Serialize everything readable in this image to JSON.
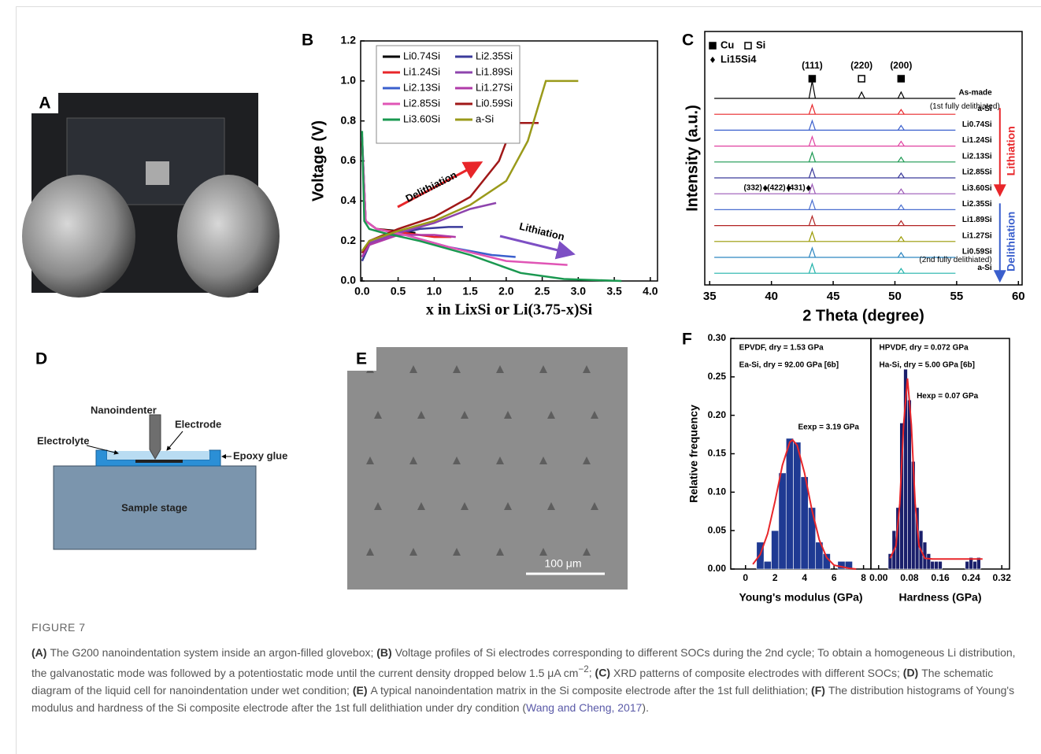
{
  "figure": {
    "label": "FIGURE 7",
    "panels": {
      "A": {
        "label": "A"
      },
      "D": {
        "label": "D",
        "texts": {
          "nanoindenter": "Nanoindenter",
          "electrode": "Electrode",
          "electrolyte": "Electrolyte",
          "epoxy": "Epoxy glue",
          "stage": "Sample stage"
        }
      },
      "E": {
        "label": "E",
        "scale_bar": "100 μm"
      }
    },
    "caption": [
      {
        "label": "(A)",
        "text": "The G200 nanoindentation system inside an argon-filled glovebox;"
      },
      {
        "label": "(B)",
        "text": "Voltage profiles of Si electrodes corresponding to different SOCs during the 2nd cycle; To obtain a homogeneous Li distribution, the galvanostatic mode was followed by a potentiostatic mode until the current density dropped below 1.5 μA cm",
        "sup": "−2",
        "tail": ";"
      },
      {
        "label": "(C)",
        "text": "XRD patterns of composite electrodes with different SOCs;"
      },
      {
        "label": "(D)",
        "text": "The schematic diagram of the liquid cell for nanoindentation under wet condition;"
      },
      {
        "label": "(E)",
        "text": "A typical nanoindentation matrix in the Si composite electrode after the 1st full delithiation;"
      },
      {
        "label": "(F)",
        "text": "The distribution histograms of Young's modulus and hardness of the Si composite electrode after the 1st full delithiation under dry condition (",
        "link": "Wang and Cheng, 2017",
        "tail": ")."
      }
    ]
  },
  "chart_data": [
    {
      "type": "line",
      "panel_label": "B",
      "xlabel": "x in LixSi or Li(3.75-x)Si",
      "ylabel": "Voltage (V)",
      "xlim": [
        -0.02,
        4.1
      ],
      "ylim": [
        0,
        1.2
      ],
      "xticks": [
        {
          "value": 0,
          "label": "0.0"
        },
        0.5,
        {
          "value": 1,
          "label": "1.0"
        },
        1.5,
        {
          "value": 2,
          "label": "2.0"
        },
        2.5,
        {
          "value": 3,
          "label": "3.0"
        },
        3.5,
        {
          "value": 4,
          "label": "4.0"
        }
      ],
      "yticks": [
        {
          "value": 0,
          "label": "0.0"
        },
        0.2,
        0.4,
        0.6,
        0.8,
        {
          "value": 1,
          "label": "1.0"
        },
        1.2
      ],
      "annotations": [
        "Delithiation",
        "Lithiation"
      ],
      "series": [
        {
          "name": "Li0.74Si",
          "color": "#000000",
          "x": [
            0,
            0.05,
            0.2,
            0.5,
            0.74
          ],
          "values": [
            0.7,
            0.3,
            0.26,
            0.25,
            0.24
          ]
        },
        {
          "name": "Li2.35Si",
          "color": "#3b3b9b",
          "x": [
            0,
            0.1,
            0.4,
            0.8,
            1.2,
            1.4
          ],
          "values": [
            0.1,
            0.18,
            0.23,
            0.26,
            0.27,
            0.27
          ]
        },
        {
          "name": "Li1.24Si",
          "color": "#e8262a",
          "x": [
            0,
            0.05,
            0.2,
            0.6,
            1.0,
            1.24
          ],
          "values": [
            0.7,
            0.3,
            0.26,
            0.24,
            0.22,
            0.22
          ]
        },
        {
          "name": "Li1.89Si",
          "color": "#8e44ad",
          "x": [
            0,
            0.1,
            0.5,
            1.0,
            1.5,
            1.86
          ],
          "values": [
            0.12,
            0.19,
            0.24,
            0.29,
            0.36,
            0.39
          ]
        },
        {
          "name": "Li2.13Si",
          "color": "#3a5fcd",
          "x": [
            0,
            0.05,
            0.2,
            0.6,
            1.2,
            1.8,
            2.13
          ],
          "values": [
            0.72,
            0.3,
            0.26,
            0.23,
            0.17,
            0.13,
            0.12
          ]
        },
        {
          "name": "Li1.27Si",
          "color": "#b03aa8",
          "x": [
            0,
            0.1,
            0.5,
            1.0,
            1.3
          ],
          "values": [
            0.12,
            0.18,
            0.23,
            0.23,
            0.22
          ]
        },
        {
          "name": "Li2.85Si",
          "color": "#e055b5",
          "x": [
            0,
            0.05,
            0.2,
            0.6,
            1.2,
            2.0,
            2.85
          ],
          "values": [
            0.72,
            0.3,
            0.26,
            0.23,
            0.17,
            0.1,
            0.08
          ]
        },
        {
          "name": "Li0.59Si",
          "color": "#a01818",
          "x": [
            0,
            0.1,
            0.5,
            1.0,
            1.5,
            1.9,
            2.1,
            2.45
          ],
          "values": [
            0.14,
            0.2,
            0.26,
            0.32,
            0.42,
            0.6,
            0.79,
            0.79
          ]
        },
        {
          "name": "Li3.60Si",
          "color": "#1a9850",
          "x": [
            0,
            0.03,
            0.1,
            0.3,
            0.8,
            1.5,
            2.2,
            2.8,
            3.6
          ],
          "values": [
            0.75,
            0.3,
            0.26,
            0.24,
            0.2,
            0.13,
            0.04,
            0.01,
            0
          ]
        },
        {
          "name": "a-Si",
          "color": "#9a9a1a",
          "x": [
            0,
            0.1,
            0.5,
            1.0,
            1.5,
            2.0,
            2.3,
            2.55,
            3.0
          ],
          "values": [
            0.15,
            0.2,
            0.25,
            0.3,
            0.38,
            0.5,
            0.7,
            1.0,
            1.0
          ]
        }
      ]
    },
    {
      "type": "xrd",
      "panel_label": "C",
      "xlabel": "2 Theta (degree)",
      "ylabel": "Intensity (a.u.)",
      "xlim": [
        34.6,
        60.3
      ],
      "xticks": [
        35,
        40,
        45,
        50,
        55,
        60
      ],
      "legend": [
        "Cu",
        "Si",
        "Li15Si4"
      ],
      "peak_labels": [
        {
          "text": "(111)",
          "x": 43.3
        },
        {
          "text": "(220)",
          "x": 47.3
        },
        {
          "text": "(200)",
          "x": 50.5
        }
      ],
      "li_peak_labels": [
        {
          "text": "(332)",
          "x": 39.5
        },
        {
          "text": "(422)",
          "x": 41.4
        },
        {
          "text": "(431)",
          "x": 43.0
        }
      ],
      "notes": [
        "(1st fully delithiated)",
        "(2nd fully delithiated)"
      ],
      "side_labels": [
        "Lithiation",
        "Delithiation"
      ],
      "series": [
        {
          "name": "As-made",
          "color": "#000000",
          "peaks": [
            43.3,
            47.3,
            50.5
          ]
        },
        {
          "name": "a-Si",
          "color": "#e8262a",
          "peaks": [
            43.3,
            50.5
          ]
        },
        {
          "name": "Li0.74Si",
          "color": "#3a5fcd",
          "peaks": [
            43.3,
            50.5
          ]
        },
        {
          "name": "Li1.24Si",
          "color": "#e040a0",
          "peaks": [
            43.3,
            50.5
          ]
        },
        {
          "name": "Li2.13Si",
          "color": "#1a9850",
          "peaks": [
            43.3,
            50.5
          ]
        },
        {
          "name": "Li2.85Si",
          "color": "#3b3b9b",
          "peaks": [
            43.3,
            50.5
          ]
        },
        {
          "name": "Li3.60Si",
          "color": "#9b59b6",
          "peaks": [
            43.3,
            50.5
          ]
        },
        {
          "name": "Li2.35Si",
          "color": "#4a6fd0",
          "peaks": [
            43.3,
            50.5
          ]
        },
        {
          "name": "Li1.89Si",
          "color": "#b22222",
          "peaks": [
            43.3,
            50.5
          ]
        },
        {
          "name": "Li1.27Si",
          "color": "#999900",
          "peaks": [
            43.3,
            50.5
          ]
        },
        {
          "name": "Li0.59Si",
          "color": "#2e86c1",
          "peaks": [
            43.3,
            50.5
          ]
        },
        {
          "name": "a-Si",
          "color": "#20b2aa",
          "peaks": [
            43.3,
            50.5
          ]
        }
      ]
    },
    {
      "type": "histogram",
      "panel_label": "F",
      "xlabel": "Young's modulus (GPa)",
      "ylabel": "Relative frequency",
      "xlim": [
        -1,
        8.5
      ],
      "xticks": [
        0,
        2,
        4,
        6,
        8
      ],
      "ylim": [
        0,
        0.3
      ],
      "yticks": [
        {
          "value": 0,
          "label": "0.00"
        },
        0.05,
        {
          "value": 0.1,
          "label": "0.10"
        },
        0.15,
        {
          "value": 0.2,
          "label": "0.20"
        },
        0.25,
        {
          "value": 0.3,
          "label": "0.30"
        }
      ],
      "color": "#1f3a93",
      "bins": [
        0.75,
        1.25,
        1.75,
        2.25,
        2.75,
        3.25,
        3.75,
        4.25,
        4.75,
        5.25,
        5.75,
        6.25,
        6.75,
        7.25
      ],
      "counts": [
        0.035,
        0.01,
        0.05,
        0.125,
        0.17,
        0.165,
        0.12,
        0.08,
        0.035,
        0.02,
        0,
        0.01,
        0.01
      ],
      "fit": {
        "color": "#e8262a",
        "x": [
          0.5,
          1,
          1.5,
          2,
          2.5,
          3,
          3.19,
          3.5,
          4,
          4.5,
          5,
          5.5,
          6,
          7,
          7.5
        ],
        "values": [
          0.0063,
          0.019,
          0.046,
          0.088,
          0.135,
          0.165,
          0.168,
          0.161,
          0.125,
          0.077,
          0.038,
          0.015,
          0.005,
          0.001,
          0
        ]
      },
      "annotations": [
        "EPVDF, dry = 1.53 GPa",
        "Ea-Si, dry = 92.00 GPa [6b]",
        "Eexp = 3.19 GPa"
      ]
    },
    {
      "type": "histogram",
      "xlabel": "Hardness (GPa)",
      "xlim": [
        -0.02,
        0.34
      ],
      "xticks": [
        {
          "value": 0,
          "label": "0.00"
        },
        0.08,
        0.16,
        0.24,
        0.32
      ],
      "ylim": [
        0,
        0.3
      ],
      "color": "#1a1f6b",
      "bins": [
        0.025,
        0.035,
        0.045,
        0.055,
        0.065,
        0.075,
        0.085,
        0.095,
        0.105,
        0.115,
        0.125,
        0.135,
        0.145,
        0.155,
        0.165,
        0.175,
        0.185,
        0.195,
        0.205,
        0.215,
        0.225,
        0.235,
        0.245,
        0.255,
        0.265
      ],
      "counts": [
        0.02,
        0.05,
        0.08,
        0.19,
        0.26,
        0.22,
        0.14,
        0.08,
        0.05,
        0.035,
        0.02,
        0.01,
        0.01,
        0.01,
        0,
        0,
        0,
        0,
        0,
        0,
        0.01,
        0.015,
        0.01,
        0.015
      ],
      "fit": {
        "color": "#e8262a",
        "x": [
          0.03,
          0.045,
          0.055,
          0.065,
          0.075,
          0.085,
          0.095,
          0.105,
          0.12,
          0.14,
          0.27
        ],
        "values": [
          0.014,
          0.03,
          0.085,
          0.188,
          0.248,
          0.188,
          0.085,
          0.03,
          0.014,
          0.013,
          0.013
        ]
      },
      "annotations": [
        "HPVDF, dry = 0.072 GPa",
        "Ha-Si, dry = 5.00 GPa [6b]",
        "Hexp = 0.07 GPa"
      ]
    }
  ]
}
